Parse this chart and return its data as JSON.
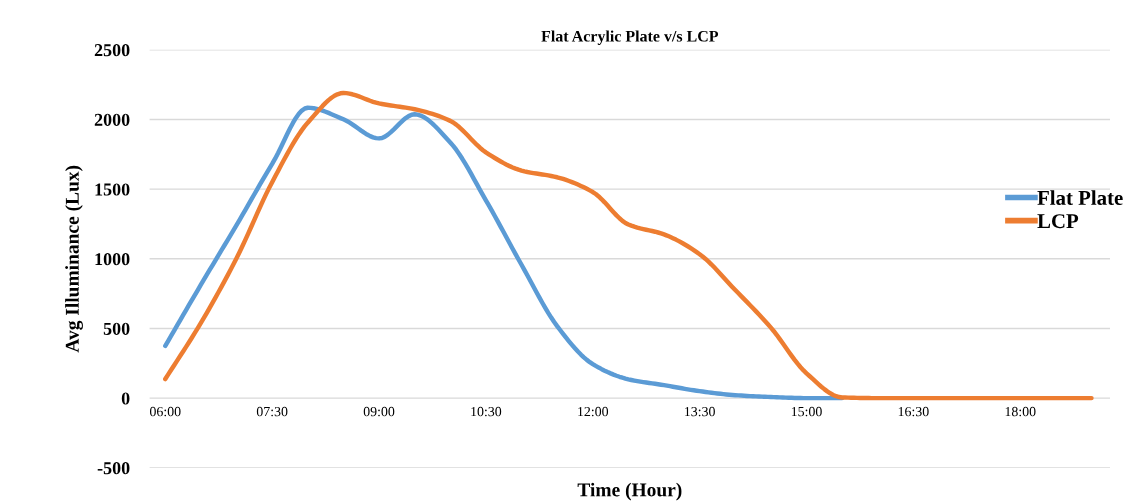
{
  "chart_data": {
    "type": "line",
    "title": "Flat Acrylic Plate v/s LCP",
    "xlabel": "Time (Hour)",
    "ylabel": "Avg Illuminance (Lux)",
    "x": [
      6,
      6.5,
      7,
      7.5,
      8,
      8.5,
      9,
      9.5,
      10,
      10.5,
      11,
      11.5,
      12,
      12.5,
      13,
      13.5,
      14,
      14.5,
      15,
      15.5,
      16,
      16.5,
      17,
      17.5,
      18,
      18.5,
      19
    ],
    "series": [
      {
        "name": "Flat Plate",
        "color": "#5b9bd5",
        "values": [
          375,
          814,
          1242,
          1681,
          2084,
          2001,
          1864,
          2037,
          1835,
          1420,
          957,
          517,
          244,
          135,
          93,
          50,
          21,
          8,
          0,
          0,
          null,
          null,
          null,
          null,
          null,
          null,
          null
        ]
      },
      {
        "name": "LCP",
        "color": "#ed7d31",
        "values": [
          137,
          540,
          1004,
          1550,
          1977,
          2190,
          2115,
          2073,
          1990,
          1764,
          1633,
          1585,
          1479,
          1246,
          1175,
          1033,
          776,
          506,
          178,
          5,
          0,
          0,
          0,
          0,
          0,
          0,
          0
        ]
      }
    ],
    "xlim": [
      5.78,
      19.26
    ],
    "xticks": [
      {
        "value": 6,
        "label": "06:00"
      },
      {
        "value": 7.5,
        "label": "07:30"
      },
      {
        "value": 9,
        "label": "09:00"
      },
      {
        "value": 10.5,
        "label": "10:30"
      },
      {
        "value": 12,
        "label": "12:00"
      },
      {
        "value": 13.5,
        "label": "13:30"
      },
      {
        "value": 15,
        "label": "15:00"
      },
      {
        "value": 16.5,
        "label": "16:30"
      },
      {
        "value": 18,
        "label": "18:00"
      }
    ],
    "ylim": [
      -500,
      2500
    ],
    "yticks": [
      -500,
      0,
      500,
      1000,
      1500,
      2000,
      2500
    ],
    "grid": "y",
    "legend": "right",
    "marker": "none",
    "line_style": "solid"
  }
}
